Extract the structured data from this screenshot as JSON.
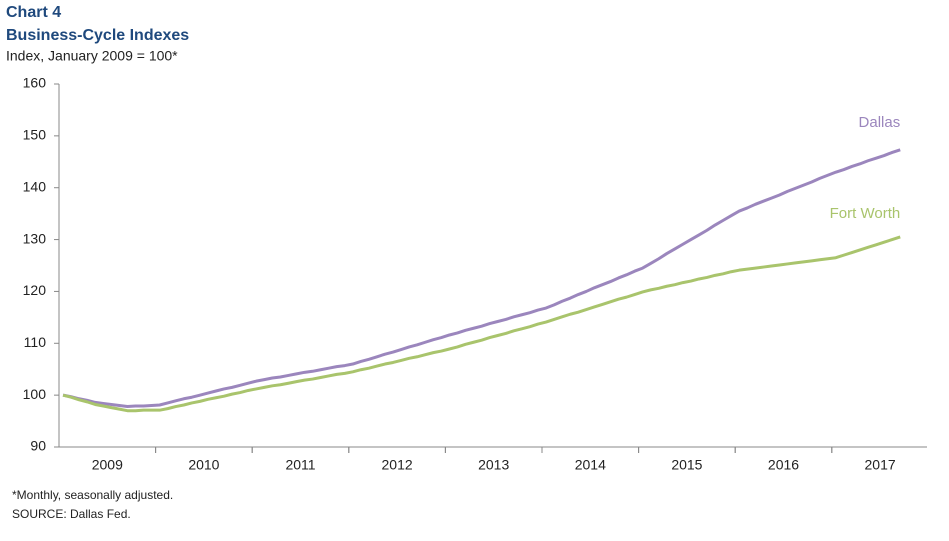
{
  "chart_data": {
    "type": "line",
    "title": "Chart 4",
    "subtitle": "Business-Cycle Indexes",
    "y_label": "Index, January 2009 = 100*",
    "notes": [
      "*Monthly, seasonally adjusted.",
      "SOURCE: Dallas Fed."
    ],
    "categories": [
      null,
      null,
      null,
      null,
      null,
      null,
      "2009",
      null,
      null,
      null,
      null,
      null,
      null,
      null,
      null,
      null,
      null,
      null,
      "2010",
      null,
      null,
      null,
      null,
      null,
      null,
      null,
      null,
      null,
      null,
      null,
      "2011",
      null,
      null,
      null,
      null,
      null,
      null,
      null,
      null,
      null,
      null,
      null,
      "2012",
      null,
      null,
      null,
      null,
      null,
      null,
      null,
      null,
      null,
      null,
      null,
      "2013",
      null,
      null,
      null,
      null,
      null,
      null,
      null,
      null,
      null,
      null,
      null,
      "2014",
      null,
      null,
      null,
      null,
      null,
      null,
      null,
      null,
      null,
      null,
      null,
      "2015",
      null,
      null,
      null,
      null,
      null,
      null,
      null,
      null,
      null,
      null,
      null,
      "2016",
      null,
      null,
      null,
      null,
      null,
      null,
      null,
      null,
      null,
      null,
      null,
      "2017",
      null,
      null
    ],
    "series": [
      {
        "name": "Dallas",
        "color": "#9b86bd",
        "values": [
          100,
          99.7,
          99.3,
          99.0,
          98.6,
          98.4,
          98.2,
          98.0,
          97.8,
          97.9,
          97.9,
          98.0,
          98.1,
          98.5,
          98.9,
          99.3,
          99.6,
          100.0,
          100.4,
          100.8,
          101.2,
          101.5,
          101.9,
          102.3,
          102.7,
          103.0,
          103.3,
          103.5,
          103.8,
          104.1,
          104.4,
          104.6,
          104.9,
          105.2,
          105.5,
          105.7,
          106.0,
          106.5,
          106.9,
          107.4,
          107.9,
          108.3,
          108.8,
          109.3,
          109.7,
          110.2,
          110.7,
          111.1,
          111.6,
          112.0,
          112.5,
          112.9,
          113.3,
          113.8,
          114.2,
          114.6,
          115.1,
          115.5,
          115.9,
          116.4,
          116.8,
          117.4,
          118.1,
          118.7,
          119.4,
          120.0,
          120.7,
          121.3,
          121.9,
          122.6,
          123.2,
          123.9,
          124.5,
          125.4,
          126.3,
          127.3,
          128.2,
          129.1,
          130.0,
          130.9,
          131.8,
          132.8,
          133.7,
          134.6,
          135.5,
          136.1,
          136.8,
          137.4,
          138.0,
          138.6,
          139.3,
          139.9,
          140.5,
          141.1,
          141.8,
          142.4,
          143.0,
          143.5,
          144.1,
          144.6,
          145.2,
          145.7,
          146.2,
          146.8,
          147.3
        ]
      },
      {
        "name": "Fort Worth",
        "color": "#a9c46c",
        "values": [
          100,
          99.6,
          99.1,
          98.7,
          98.2,
          97.9,
          97.6,
          97.3,
          97.0,
          97.0,
          97.1,
          97.1,
          97.1,
          97.4,
          97.8,
          98.1,
          98.5,
          98.8,
          99.2,
          99.5,
          99.8,
          100.2,
          100.5,
          100.9,
          101.2,
          101.5,
          101.8,
          102.0,
          102.3,
          102.6,
          102.9,
          103.1,
          103.4,
          103.7,
          104.0,
          104.2,
          104.5,
          104.9,
          105.2,
          105.6,
          106.0,
          106.3,
          106.7,
          107.1,
          107.4,
          107.8,
          108.2,
          108.5,
          108.9,
          109.3,
          109.8,
          110.2,
          110.6,
          111.1,
          111.5,
          111.9,
          112.4,
          112.8,
          113.2,
          113.7,
          114.1,
          114.6,
          115.1,
          115.6,
          116.0,
          116.5,
          117.0,
          117.5,
          118.0,
          118.5,
          118.9,
          119.4,
          119.9,
          120.3,
          120.6,
          121.0,
          121.3,
          121.7,
          122.0,
          122.4,
          122.7,
          123.1,
          123.4,
          123.8,
          124.1,
          124.3,
          124.5,
          124.7,
          124.9,
          125.1,
          125.3,
          125.5,
          125.7,
          125.9,
          126.1,
          126.3,
          126.5,
          127.0,
          127.5,
          128.0,
          128.5,
          129.0,
          129.5,
          130.0,
          130.5
        ]
      }
    ],
    "ylim": [
      90,
      160
    ],
    "yticks": [
      90,
      100,
      110,
      120,
      130,
      140,
      150,
      160
    ],
    "grid": false
  }
}
